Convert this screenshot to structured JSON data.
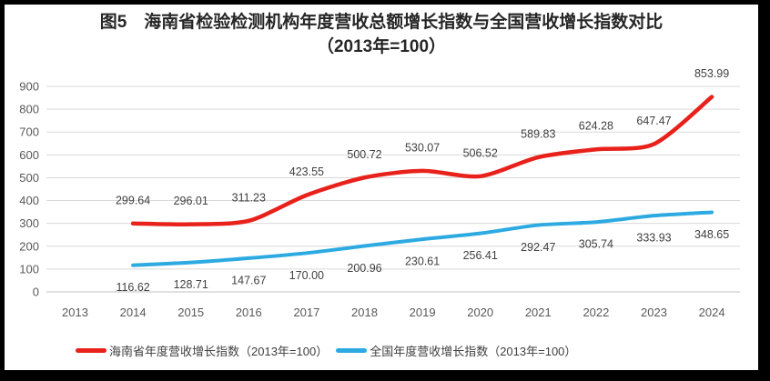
{
  "title": {
    "line1": "图5　海南省检验检测机构年度营收总额增长指数与全国营收增长指数对比",
    "line2": "（2013年=100）"
  },
  "colors": {
    "hainan_line": "#e8211b",
    "national_line": "#2caae1",
    "gridline": "#d9d9d9",
    "axis_line": "#c0c0c0",
    "tick_text": "#595959",
    "data_label_text": "#404040",
    "title_text": "#262626",
    "frame_border": "#000000",
    "background": "#ffffff"
  },
  "chart_data": {
    "type": "line",
    "title": "图5　海南省检验检测机构年度营收总额增长指数与全国营收增长指数对比（2013年=100）",
    "categories": [
      "2013",
      "2014",
      "2015",
      "2016",
      "2017",
      "2018",
      "2019",
      "2020",
      "2021",
      "2022",
      "2023",
      "2024"
    ],
    "series": [
      {
        "name": "海南省年度营收增长指数（2013年=100）",
        "color": "#e8211b",
        "start_year": "2014",
        "label_position": "above",
        "values": [
          299.64,
          296.01,
          311.23,
          423.55,
          500.72,
          530.07,
          506.52,
          589.83,
          624.28,
          647.47,
          853.99
        ]
      },
      {
        "name": "全国年度营收增长指数（2013年=100）",
        "color": "#2caae1",
        "start_year": "2014",
        "label_position": "below",
        "values": [
          116.62,
          128.71,
          147.67,
          170.0,
          200.96,
          230.61,
          256.41,
          292.47,
          305.74,
          333.93,
          348.65
        ]
      }
    ],
    "y_axis": {
      "min": 0,
      "max": 900,
      "step": 100
    },
    "x_axis_ticks": [
      "2013",
      "2014",
      "2015",
      "2016",
      "2017",
      "2018",
      "2019",
      "2020",
      "2021",
      "2022",
      "2023",
      "2024"
    ],
    "grid": true,
    "legend_position": "bottom",
    "data_labels_decimals": 2
  }
}
